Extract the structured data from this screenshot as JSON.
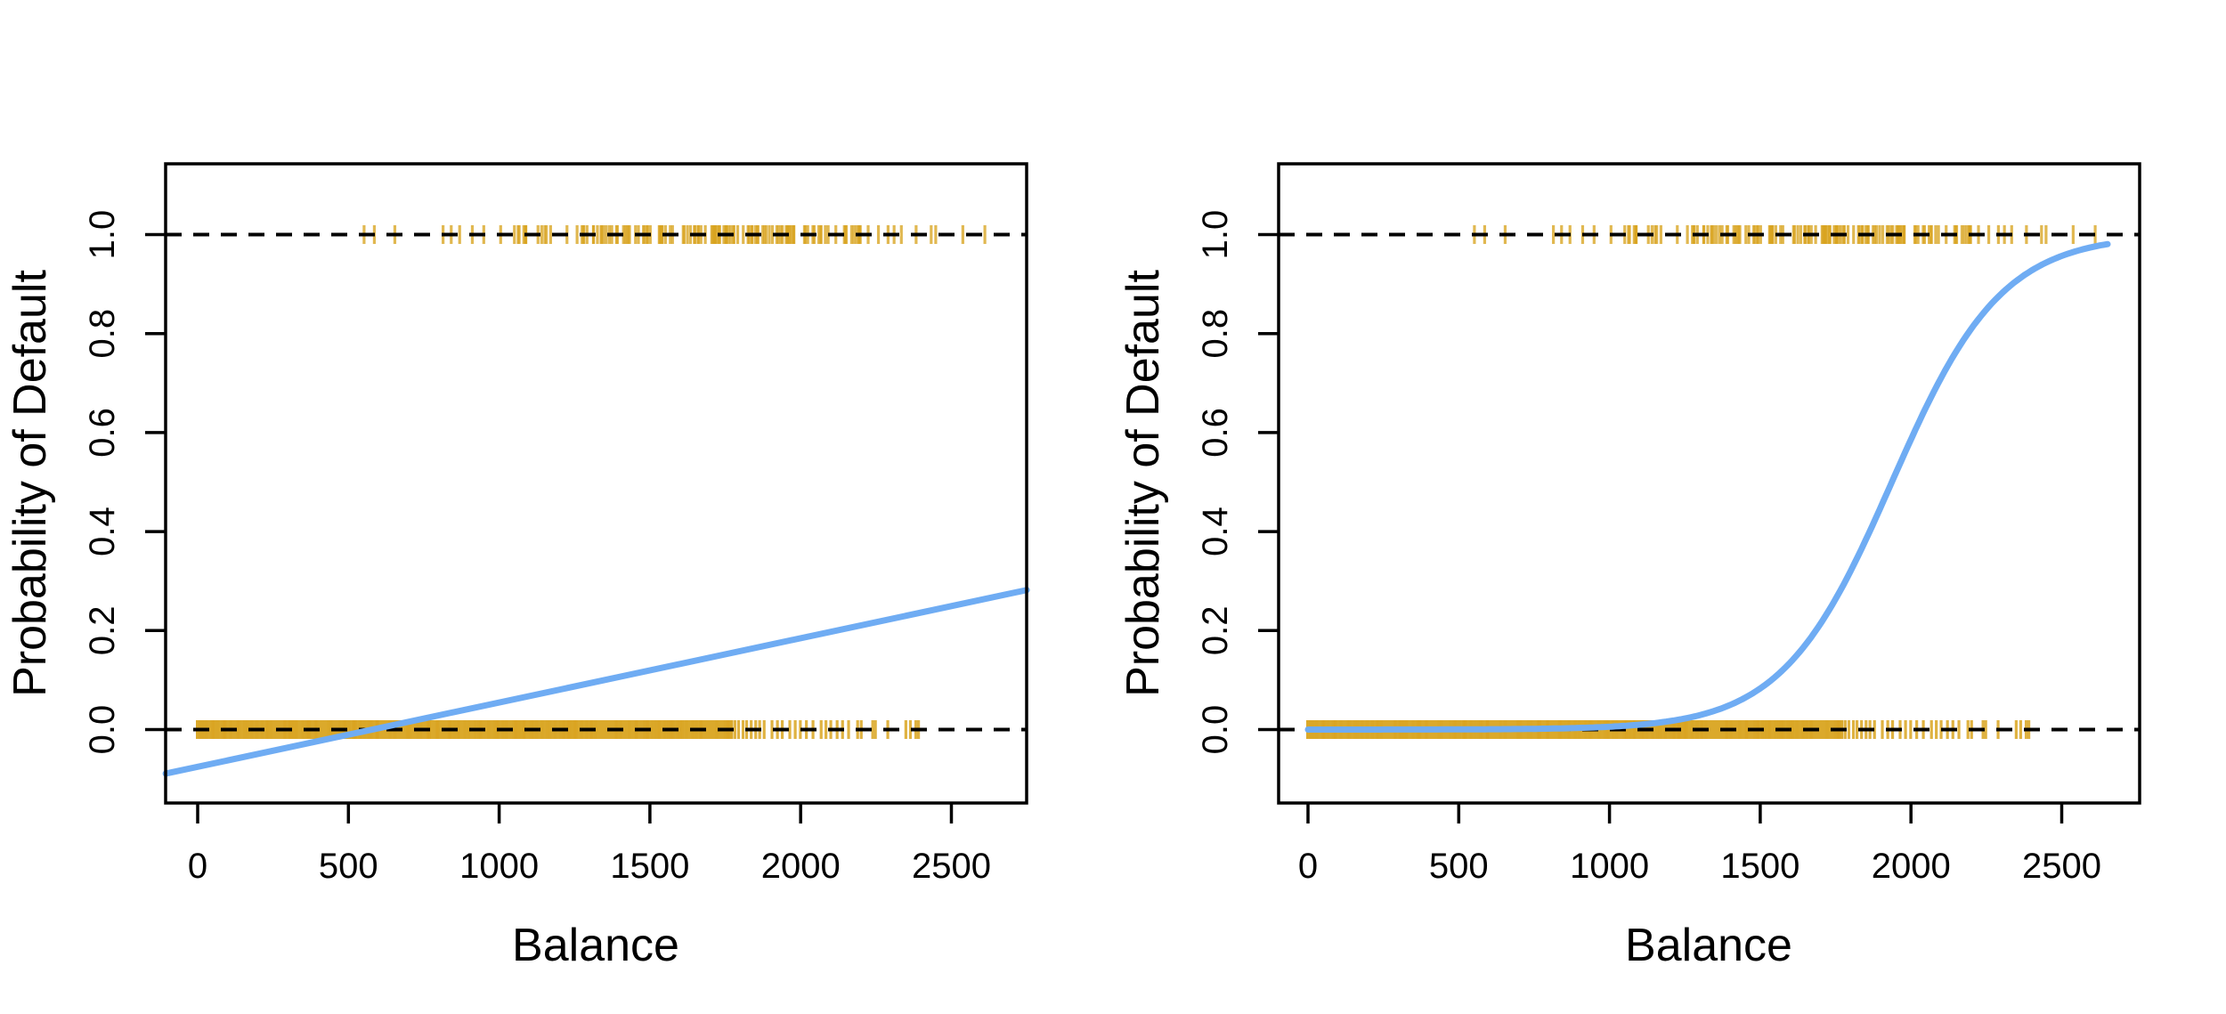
{
  "page": {
    "background": "#ffffff",
    "foreground": "#000000"
  },
  "chart_data": [
    {
      "type": "line",
      "name": "linear-regression-panel",
      "title": "",
      "xlabel": "Balance",
      "ylabel": "Probability of Default",
      "x_ticks": [
        "0",
        "500",
        "1000",
        "1500",
        "2000",
        "2500"
      ],
      "x_tick_values": [
        0,
        500,
        1000,
        1500,
        2000,
        2500
      ],
      "y_ticks": [
        "0.0",
        "0.2",
        "0.4",
        "0.6",
        "0.8",
        "1.0"
      ],
      "y_tick_values": [
        0,
        0.2,
        0.4,
        0.6,
        0.8,
        1.0
      ],
      "xlim": [
        -106,
        2750
      ],
      "ylim": [
        -0.149,
        1.141
      ],
      "grid": "off",
      "legend": "none",
      "hlines_dashed": [
        0,
        1
      ],
      "fit": {
        "model": "linear",
        "intercept": -0.0752,
        "slope": 0.00012987,
        "x_range": [
          -106,
          2750
        ]
      },
      "fit_color": "#6FACF3",
      "fit_width": 7
    },
    {
      "type": "line",
      "name": "logistic-regression-panel",
      "title": "",
      "xlabel": "Balance",
      "ylabel": "Probability of Default",
      "x_ticks": [
        "0",
        "500",
        "1000",
        "1500",
        "2000",
        "2500"
      ],
      "x_tick_values": [
        0,
        500,
        1000,
        1500,
        2000,
        2500
      ],
      "y_ticks": [
        "0.0",
        "0.2",
        "0.4",
        "0.6",
        "0.8",
        "1.0"
      ],
      "y_tick_values": [
        0,
        0.2,
        0.4,
        0.6,
        0.8,
        1.0
      ],
      "xlim": [
        -106,
        2750
      ],
      "ylim": [
        -0.149,
        1.141
      ],
      "grid": "off",
      "legend": "none",
      "hlines_dashed": [
        0,
        1
      ],
      "fit": {
        "model": "logistic",
        "beta0": -10.6513,
        "beta1": 0.0055,
        "x_range": [
          0,
          2654
        ]
      },
      "fit_color": "#6FACF3",
      "fit_width": 7
    }
  ],
  "rug": {
    "color": "#D9A420",
    "mark_height": 21,
    "mark_width": 3.2,
    "seed": 42,
    "no_default": {
      "y": 0,
      "band": [
        0,
        1770
      ],
      "texture_count": 150,
      "sparse_x": [
        1782,
        1794,
        1809,
        1821,
        1836,
        1851,
        1864,
        1879,
        1905,
        1923,
        1939,
        1964,
        1982,
        1999,
        2019,
        2041,
        2068,
        2084,
        2100,
        2121,
        2139,
        2159,
        2189,
        2201,
        2239,
        2248,
        2289,
        2349,
        2364,
        2382,
        2391
      ]
    },
    "default": {
      "y": 1,
      "segments": [
        {
          "min": 1010,
          "max": 1250,
          "count": 13
        },
        {
          "min": 1250,
          "max": 1450,
          "count": 21
        },
        {
          "min": 1450,
          "max": 2050,
          "count": 74
        },
        {
          "min": 2050,
          "max": 2230,
          "count": 16
        }
      ],
      "sparse_low_x": [
        552,
        586,
        654,
        814,
        841,
        869,
        911,
        949,
        1005
      ],
      "sparse_high_x": [
        2258,
        2290,
        2310,
        2334,
        2383,
        2433,
        2448,
        2538,
        2611
      ]
    }
  }
}
